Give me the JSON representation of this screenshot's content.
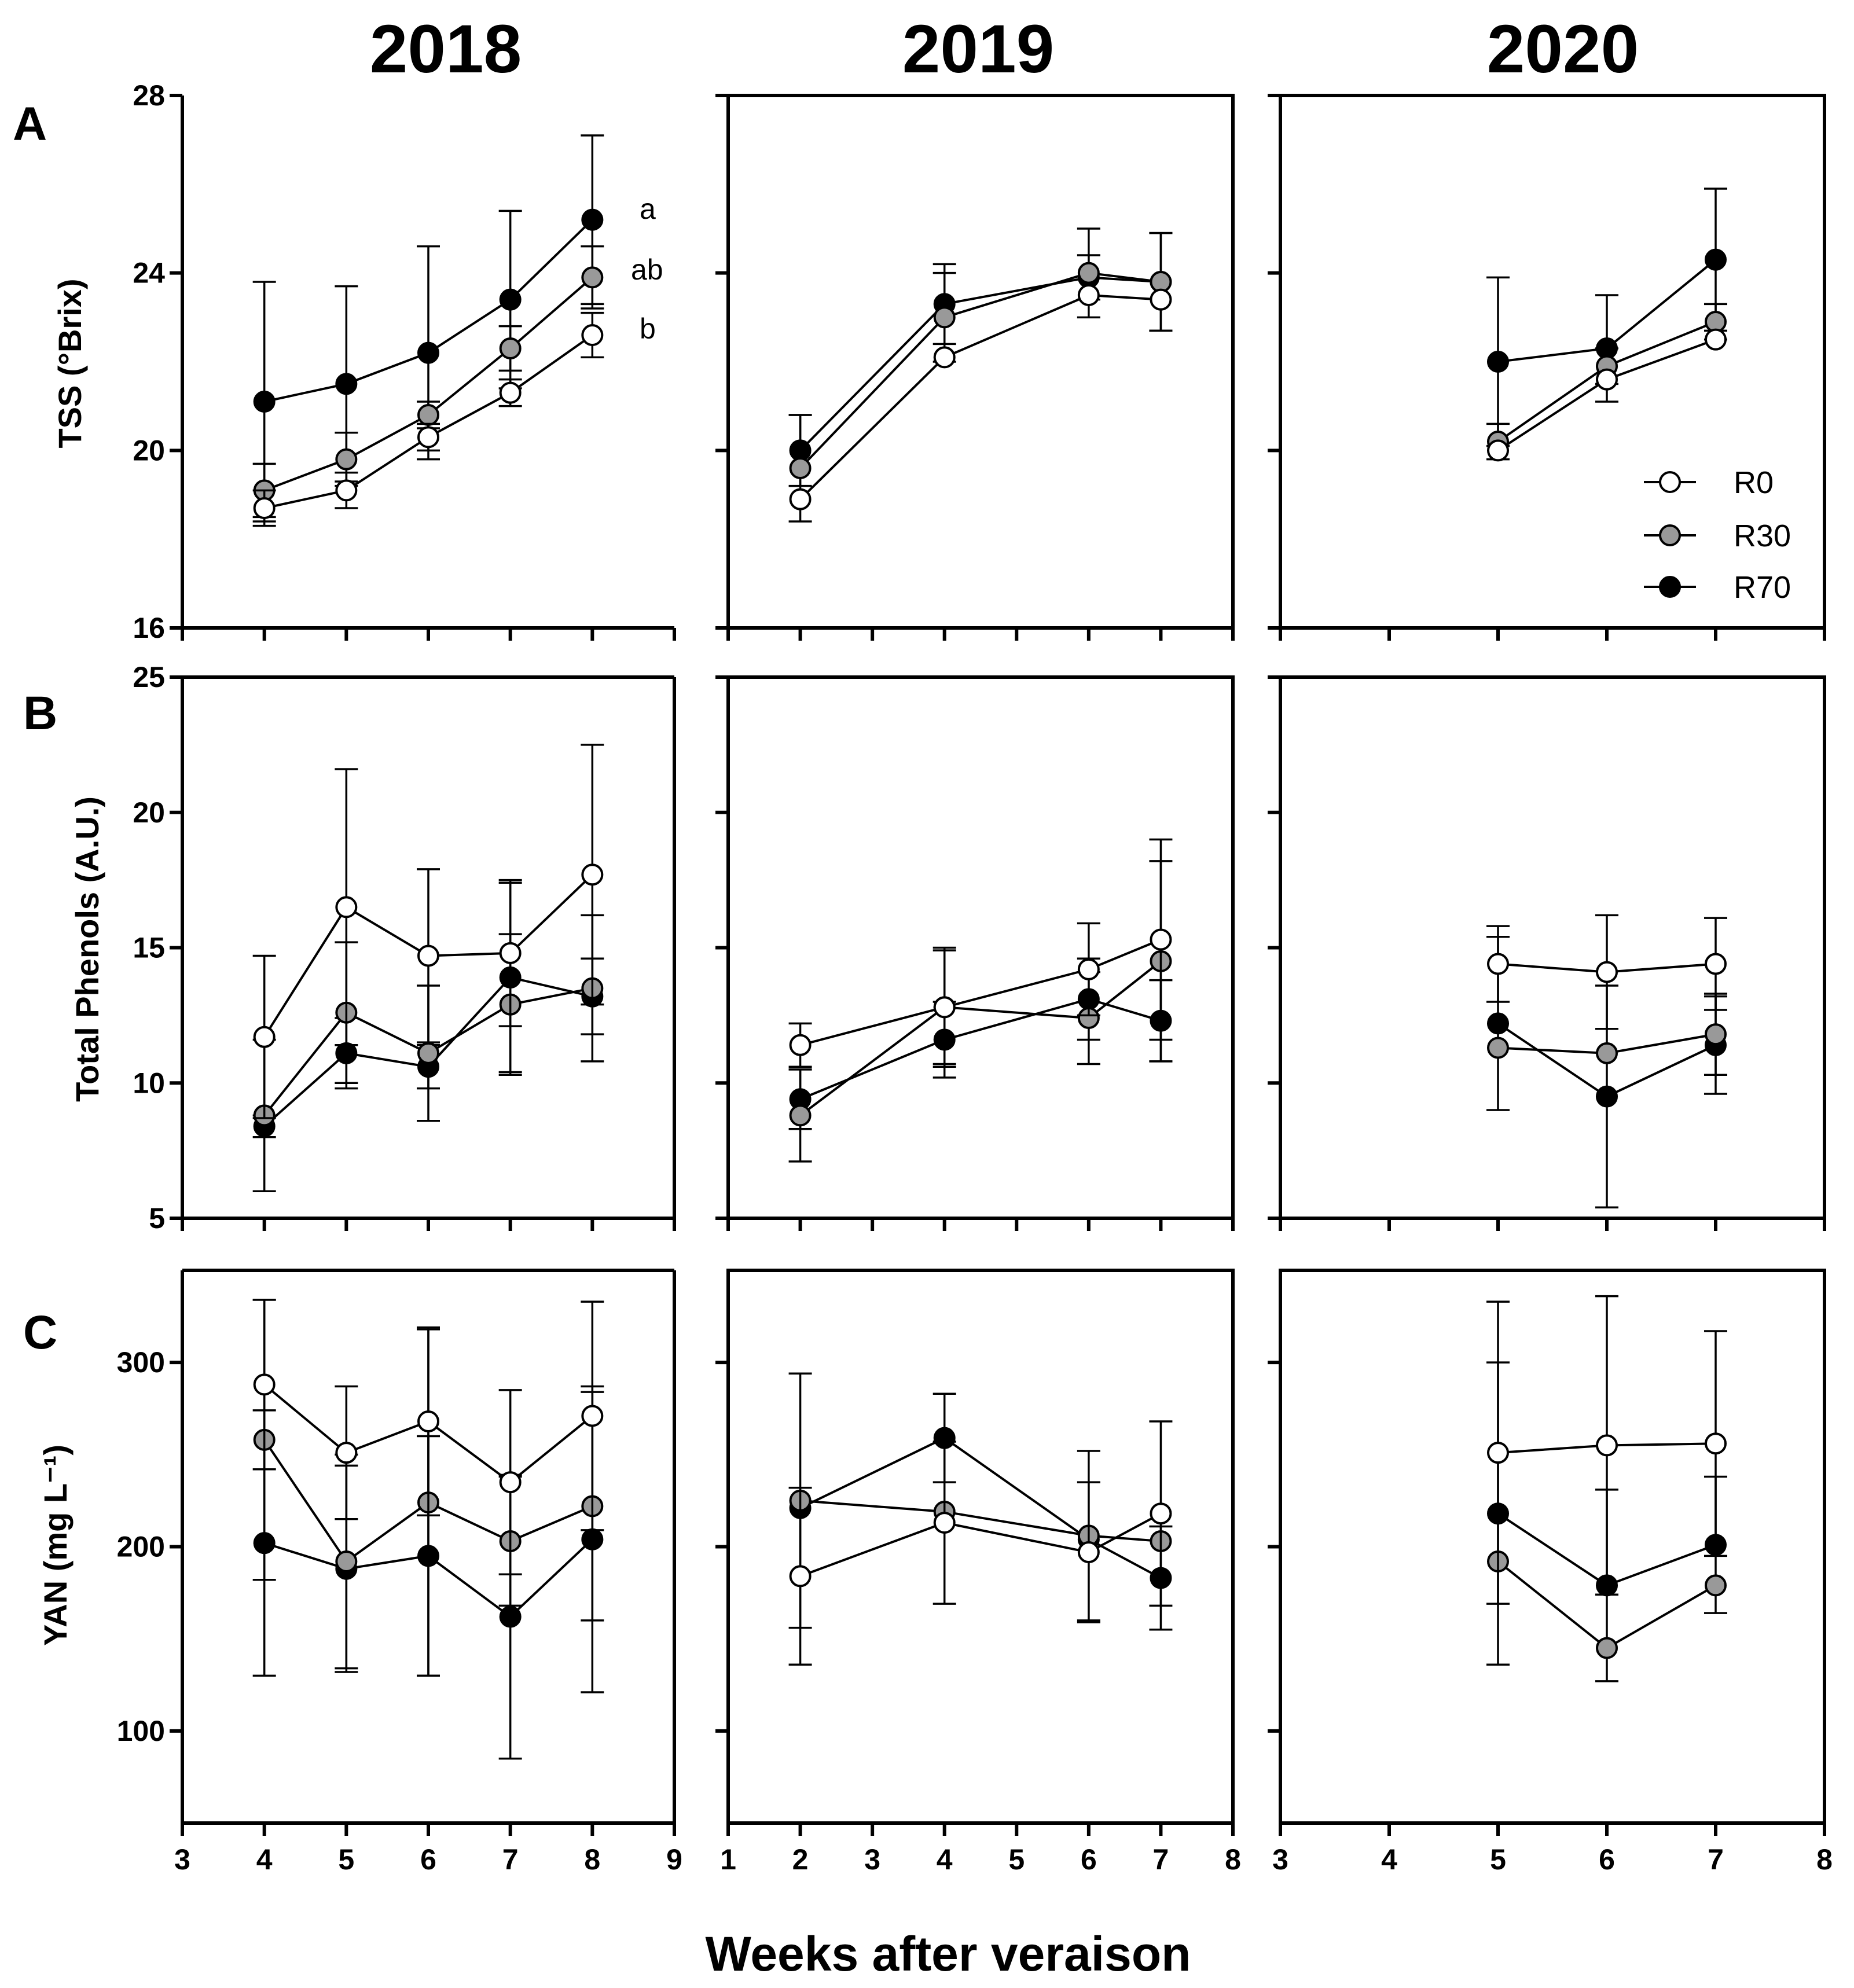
{
  "figure": {
    "x_label": "Weeks after veraison",
    "years": [
      "2018",
      "2019",
      "2020"
    ],
    "rows": [
      {
        "letter": "A",
        "ylabel": "TSS (°Brix)",
        "ylim": [
          16,
          28
        ],
        "yticks": [
          16,
          20,
          24,
          28
        ]
      },
      {
        "letter": "B",
        "ylabel": "Total Phenols (A.U.)",
        "ylim": [
          5,
          25
        ],
        "yticks": [
          5,
          10,
          15,
          20,
          25
        ]
      },
      {
        "letter": "C",
        "ylabel": "YAN (mg L⁻¹)",
        "ylim": [
          50,
          350
        ],
        "yticks": [
          100,
          200,
          300
        ]
      }
    ],
    "columns": [
      {
        "year": "2018",
        "xlim": [
          3,
          9
        ],
        "xticks": [
          3,
          4,
          5,
          6,
          7,
          8,
          9
        ]
      },
      {
        "year": "2019",
        "xlim": [
          1,
          8
        ],
        "xticks": [
          1,
          2,
          3,
          4,
          5,
          6,
          7,
          8
        ]
      },
      {
        "year": "2020",
        "xlim": [
          3,
          8
        ],
        "xticks": [
          3,
          4,
          5,
          6,
          7,
          8
        ]
      }
    ],
    "legend": [
      {
        "name": "R0",
        "color": "#ffffff"
      },
      {
        "name": "R30",
        "color": "#999999"
      },
      {
        "name": "R70",
        "color": "#000000"
      }
    ],
    "annotations": [
      {
        "text": "a",
        "panel": "A-2018"
      },
      {
        "text": "ab",
        "panel": "A-2018"
      },
      {
        "text": "b",
        "panel": "A-2018"
      }
    ]
  },
  "chart_data": [
    {
      "type": "line",
      "panel": "A-2018",
      "title": "2018",
      "xlabel": "Weeks after veraison",
      "ylabel": "TSS (°Brix)",
      "x": [
        4,
        5,
        6,
        7,
        8
      ],
      "ylim": [
        16,
        28
      ],
      "series": [
        {
          "name": "R0",
          "values": [
            18.7,
            19.1,
            20.3,
            21.3,
            22.6
          ],
          "errors": [
            0.4,
            0.4,
            0.3,
            0.3,
            0.5
          ]
        },
        {
          "name": "R30",
          "values": [
            19.1,
            19.8,
            20.8,
            22.3,
            23.9
          ],
          "errors": [
            0.6,
            0.6,
            0.3,
            0.5,
            0.7
          ]
        },
        {
          "name": "R70",
          "values": [
            21.1,
            21.5,
            22.2,
            23.4,
            25.2
          ],
          "errors": [
            2.7,
            2.2,
            2.4,
            2.0,
            1.9
          ]
        }
      ],
      "significance": [
        "b",
        "ab",
        "a"
      ]
    },
    {
      "type": "line",
      "panel": "A-2019",
      "title": "2019",
      "xlabel": "Weeks after veraison",
      "ylabel": "TSS (°Brix)",
      "x": [
        2,
        4,
        6,
        7
      ],
      "ylim": [
        16,
        28
      ],
      "series": [
        {
          "name": "R0",
          "values": [
            18.9,
            22.1,
            23.5,
            23.4
          ],
          "errors": [
            0.0,
            0.0,
            0.0,
            0.0
          ]
        },
        {
          "name": "R30",
          "values": [
            19.6,
            23.0,
            24.0,
            23.8
          ],
          "errors": [
            1.2,
            1.0,
            1.0,
            1.1
          ]
        },
        {
          "name": "R70",
          "values": [
            20.0,
            23.3,
            23.9,
            23.8
          ],
          "errors": [
            0.8,
            0.9,
            0.5,
            1.1
          ]
        }
      ]
    },
    {
      "type": "line",
      "panel": "A-2020",
      "title": "2020",
      "xlabel": "Weeks after veraison",
      "ylabel": "TSS (°Brix)",
      "x": [
        5,
        6,
        7
      ],
      "ylim": [
        16,
        28
      ],
      "series": [
        {
          "name": "R0",
          "values": [
            20.0,
            21.6,
            22.5
          ],
          "errors": [
            0.0,
            0.0,
            0.0
          ]
        },
        {
          "name": "R30",
          "values": [
            20.2,
            21.9,
            22.9
          ],
          "errors": [
            0.4,
            0.4,
            0.4
          ]
        },
        {
          "name": "R70",
          "values": [
            22.0,
            22.3,
            24.3
          ],
          "errors": [
            1.9,
            1.2,
            1.6
          ]
        }
      ]
    },
    {
      "type": "line",
      "panel": "B-2018",
      "title": "2018",
      "xlabel": "Weeks after veraison",
      "ylabel": "Total Phenols (A.U.)",
      "x": [
        4,
        5,
        6,
        7,
        8
      ],
      "ylim": [
        5,
        25
      ],
      "series": [
        {
          "name": "R0",
          "values": [
            11.7,
            16.5,
            14.7,
            14.8,
            17.7
          ],
          "errors": [
            3.0,
            5.1,
            3.2,
            2.7,
            4.8
          ]
        },
        {
          "name": "R30",
          "values": [
            8.8,
            12.6,
            11.1,
            12.9,
            13.5
          ],
          "errors": [
            2.8,
            2.6,
            2.5,
            2.6,
            2.7
          ]
        },
        {
          "name": "R70",
          "values": [
            8.4,
            11.1,
            10.6,
            13.9,
            13.2
          ],
          "errors": [
            0.4,
            1.3,
            0.8,
            3.5,
            1.4
          ]
        }
      ]
    },
    {
      "type": "line",
      "panel": "B-2019",
      "title": "2019",
      "xlabel": "Weeks after veraison",
      "ylabel": "Total Phenols (A.U.)",
      "x": [
        2,
        4,
        6,
        7
      ],
      "ylim": [
        5,
        25
      ],
      "series": [
        {
          "name": "R0",
          "values": [
            11.4,
            12.8,
            14.2,
            15.3
          ],
          "errors": [
            0.8,
            2.1,
            1.7,
            3.7
          ]
        },
        {
          "name": "R30",
          "values": [
            8.8,
            12.8,
            12.4,
            14.5
          ],
          "errors": [
            1.7,
            2.2,
            1.7,
            3.7
          ]
        },
        {
          "name": "R70",
          "values": [
            9.4,
            11.6,
            13.1,
            12.3
          ],
          "errors": [
            1.1,
            1.4,
            1.5,
            1.5
          ]
        }
      ]
    },
    {
      "type": "line",
      "panel": "B-2020",
      "title": "2020",
      "xlabel": "Weeks after veraison",
      "ylabel": "Total Phenols (A.U.)",
      "x": [
        5,
        6,
        7
      ],
      "ylim": [
        5,
        25
      ],
      "series": [
        {
          "name": "R0",
          "values": [
            14.4,
            14.1,
            14.4
          ],
          "errors": [
            1.4,
            2.1,
            1.7
          ]
        },
        {
          "name": "R30",
          "values": [
            11.3,
            11.1,
            11.8
          ],
          "errors": [
            0.0,
            0.0,
            1.5
          ]
        },
        {
          "name": "R70",
          "values": [
            12.2,
            9.5,
            11.4
          ],
          "errors": [
            3.2,
            4.1,
            1.8
          ]
        }
      ]
    },
    {
      "type": "line",
      "panel": "C-2018",
      "title": "2018",
      "xlabel": "Weeks after veraison",
      "ylabel": "YAN (mg L⁻¹)",
      "x": [
        4,
        5,
        6,
        7,
        8
      ],
      "ylim": [
        50,
        350
      ],
      "series": [
        {
          "name": "R0",
          "values": [
            288,
            251,
            268,
            235,
            271
          ],
          "errors": [
            46,
            36,
            51,
            50,
            62
          ]
        },
        {
          "name": "R30",
          "values": [
            258,
            192,
            224,
            203,
            222
          ],
          "errors": [
            76,
            58,
            94,
            35,
            62
          ]
        },
        {
          "name": "R70",
          "values": [
            202,
            188,
            195,
            162,
            204
          ],
          "errors": [
            72,
            56,
            65,
            77,
            83
          ]
        }
      ]
    },
    {
      "type": "line",
      "panel": "C-2019",
      "title": "2019",
      "xlabel": "Weeks after veraison",
      "ylabel": "YAN (mg L⁻¹)",
      "x": [
        2,
        4,
        6,
        7
      ],
      "ylim": [
        50,
        350
      ],
      "series": [
        {
          "name": "R0",
          "values": [
            184,
            213,
            197,
            218
          ],
          "errors": [
            48,
            44,
            38,
            50
          ]
        },
        {
          "name": "R30",
          "values": [
            225,
            219,
            206,
            203
          ],
          "errors": [
            69,
            0,
            46,
            0
          ]
        },
        {
          "name": "R70",
          "values": [
            221,
            259,
            204,
            183
          ],
          "errors": [
            0,
            24,
            0,
            28
          ]
        }
      ]
    },
    {
      "type": "line",
      "panel": "C-2020",
      "title": "2020",
      "xlabel": "Weeks after veraison",
      "ylabel": "YAN (mg L⁻¹)",
      "x": [
        5,
        6,
        7
      ],
      "ylim": [
        50,
        350
      ],
      "series": [
        {
          "name": "R0",
          "values": [
            251,
            255,
            256
          ],
          "errors": [
            82,
            81,
            61
          ]
        },
        {
          "name": "R30",
          "values": [
            192,
            145,
            179
          ],
          "errors": [
            0,
            0,
            0
          ]
        },
        {
          "name": "R70",
          "values": [
            218,
            179,
            201
          ],
          "errors": [
            82,
            52,
            37
          ]
        }
      ]
    }
  ]
}
